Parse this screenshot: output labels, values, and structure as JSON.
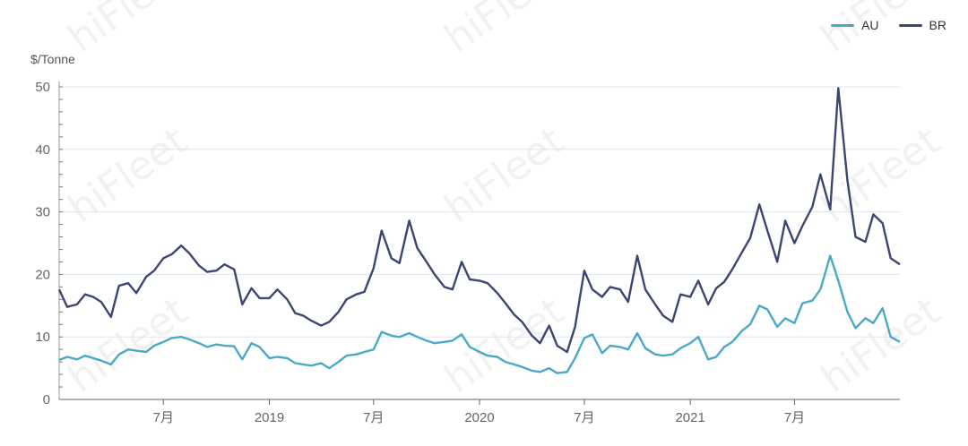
{
  "chart_data": {
    "type": "line",
    "y_unit": "$/Tonne",
    "ylim": [
      0,
      50
    ],
    "yticks": [
      0,
      10,
      20,
      30,
      40,
      50
    ],
    "x_range": [
      "2018-01-01",
      "2021-12-31"
    ],
    "xticks": [
      {
        "date": "2018-07-01",
        "label": "7月"
      },
      {
        "date": "2019-01-01",
        "label": "2019"
      },
      {
        "date": "2019-07-01",
        "label": "7月"
      },
      {
        "date": "2020-01-01",
        "label": "2020"
      },
      {
        "date": "2020-07-01",
        "label": "7月"
      },
      {
        "date": "2021-01-01",
        "label": "2021"
      },
      {
        "date": "2021-07-01",
        "label": "7月"
      }
    ],
    "grid": true,
    "legend_position": "top-right",
    "series": [
      {
        "name": "AU",
        "color": "#4aaac6",
        "points": [
          [
            "2018-01-01",
            6.3
          ],
          [
            "2018-01-15",
            6.8
          ],
          [
            "2018-02-01",
            6.4
          ],
          [
            "2018-02-15",
            7.0
          ],
          [
            "2018-03-01",
            6.6
          ],
          [
            "2018-03-15",
            6.2
          ],
          [
            "2018-04-01",
            5.6
          ],
          [
            "2018-04-15",
            7.2
          ],
          [
            "2018-05-01",
            8.0
          ],
          [
            "2018-05-15",
            7.8
          ],
          [
            "2018-06-01",
            7.6
          ],
          [
            "2018-06-15",
            8.6
          ],
          [
            "2018-07-01",
            9.2
          ],
          [
            "2018-07-15",
            9.8
          ],
          [
            "2018-08-01",
            10.0
          ],
          [
            "2018-08-15",
            9.6
          ],
          [
            "2018-09-01",
            9.0
          ],
          [
            "2018-09-15",
            8.4
          ],
          [
            "2018-10-01",
            8.8
          ],
          [
            "2018-10-15",
            8.6
          ],
          [
            "2018-11-01",
            8.5
          ],
          [
            "2018-11-15",
            6.4
          ],
          [
            "2018-12-01",
            9.0
          ],
          [
            "2018-12-15",
            8.4
          ],
          [
            "2019-01-01",
            6.6
          ],
          [
            "2019-01-15",
            6.8
          ],
          [
            "2019-02-01",
            6.6
          ],
          [
            "2019-02-15",
            5.8
          ],
          [
            "2019-03-01",
            5.6
          ],
          [
            "2019-03-15",
            5.4
          ],
          [
            "2019-04-01",
            5.8
          ],
          [
            "2019-04-15",
            5.0
          ],
          [
            "2019-05-01",
            6.0
          ],
          [
            "2019-05-15",
            7.0
          ],
          [
            "2019-06-01",
            7.2
          ],
          [
            "2019-06-15",
            7.6
          ],
          [
            "2019-07-01",
            8.0
          ],
          [
            "2019-07-15",
            10.8
          ],
          [
            "2019-08-01",
            10.2
          ],
          [
            "2019-08-15",
            10.0
          ],
          [
            "2019-09-01",
            10.6
          ],
          [
            "2019-09-15",
            10.0
          ],
          [
            "2019-10-01",
            9.4
          ],
          [
            "2019-10-15",
            9.0
          ],
          [
            "2019-11-01",
            9.2
          ],
          [
            "2019-11-15",
            9.4
          ],
          [
            "2019-12-01",
            10.4
          ],
          [
            "2019-12-15",
            8.4
          ],
          [
            "2020-01-01",
            7.6
          ],
          [
            "2020-01-15",
            7.0
          ],
          [
            "2020-02-01",
            6.8
          ],
          [
            "2020-02-15",
            6.0
          ],
          [
            "2020-03-01",
            5.6
          ],
          [
            "2020-03-15",
            5.2
          ],
          [
            "2020-04-01",
            4.6
          ],
          [
            "2020-04-15",
            4.4
          ],
          [
            "2020-05-01",
            5.0
          ],
          [
            "2020-05-15",
            4.2
          ],
          [
            "2020-06-01",
            4.4
          ],
          [
            "2020-06-15",
            6.6
          ],
          [
            "2020-07-01",
            9.8
          ],
          [
            "2020-07-15",
            10.4
          ],
          [
            "2020-08-01",
            7.4
          ],
          [
            "2020-08-15",
            8.6
          ],
          [
            "2020-09-01",
            8.4
          ],
          [
            "2020-09-15",
            8.0
          ],
          [
            "2020-10-01",
            10.6
          ],
          [
            "2020-10-15",
            8.2
          ],
          [
            "2020-11-01",
            7.2
          ],
          [
            "2020-11-15",
            7.0
          ],
          [
            "2020-12-01",
            7.2
          ],
          [
            "2020-12-15",
            8.2
          ],
          [
            "2021-01-01",
            9.0
          ],
          [
            "2021-01-15",
            10.0
          ],
          [
            "2021-02-01",
            6.4
          ],
          [
            "2021-02-15",
            6.8
          ],
          [
            "2021-03-01",
            8.4
          ],
          [
            "2021-03-15",
            9.2
          ],
          [
            "2021-04-01",
            11.0
          ],
          [
            "2021-04-15",
            12.0
          ],
          [
            "2021-05-01",
            15.0
          ],
          [
            "2021-05-15",
            14.4
          ],
          [
            "2021-06-01",
            11.6
          ],
          [
            "2021-06-15",
            13.0
          ],
          [
            "2021-07-01",
            12.2
          ],
          [
            "2021-07-15",
            15.4
          ],
          [
            "2021-08-01",
            15.8
          ],
          [
            "2021-08-15",
            17.6
          ],
          [
            "2021-09-01",
            23.0
          ],
          [
            "2021-09-15",
            19.0
          ],
          [
            "2021-10-01",
            14.0
          ],
          [
            "2021-10-15",
            11.4
          ],
          [
            "2021-11-01",
            13.0
          ],
          [
            "2021-11-15",
            12.2
          ],
          [
            "2021-12-01",
            14.6
          ],
          [
            "2021-12-15",
            10.0
          ],
          [
            "2021-12-31",
            9.2
          ]
        ]
      },
      {
        "name": "BR",
        "color": "#3d4670",
        "points": [
          [
            "2018-01-01",
            17.6
          ],
          [
            "2018-01-15",
            14.8
          ],
          [
            "2018-02-01",
            15.2
          ],
          [
            "2018-02-15",
            16.8
          ],
          [
            "2018-03-01",
            16.4
          ],
          [
            "2018-03-15",
            15.6
          ],
          [
            "2018-04-01",
            13.2
          ],
          [
            "2018-04-15",
            18.2
          ],
          [
            "2018-05-01",
            18.6
          ],
          [
            "2018-05-15",
            17.0
          ],
          [
            "2018-06-01",
            19.6
          ],
          [
            "2018-06-15",
            20.6
          ],
          [
            "2018-07-01",
            22.6
          ],
          [
            "2018-07-15",
            23.2
          ],
          [
            "2018-08-01",
            24.6
          ],
          [
            "2018-08-15",
            23.4
          ],
          [
            "2018-09-01",
            21.4
          ],
          [
            "2018-09-15",
            20.4
          ],
          [
            "2018-10-01",
            20.6
          ],
          [
            "2018-10-15",
            21.6
          ],
          [
            "2018-11-01",
            20.8
          ],
          [
            "2018-11-15",
            15.2
          ],
          [
            "2018-12-01",
            17.8
          ],
          [
            "2018-12-15",
            16.2
          ],
          [
            "2019-01-01",
            16.2
          ],
          [
            "2019-01-15",
            17.6
          ],
          [
            "2019-02-01",
            16.0
          ],
          [
            "2019-02-15",
            13.8
          ],
          [
            "2019-03-01",
            13.4
          ],
          [
            "2019-03-15",
            12.6
          ],
          [
            "2019-04-01",
            11.8
          ],
          [
            "2019-04-15",
            12.4
          ],
          [
            "2019-05-01",
            14.0
          ],
          [
            "2019-05-15",
            16.0
          ],
          [
            "2019-06-01",
            16.8
          ],
          [
            "2019-06-15",
            17.2
          ],
          [
            "2019-07-01",
            21.0
          ],
          [
            "2019-07-15",
            27.0
          ],
          [
            "2019-08-01",
            22.6
          ],
          [
            "2019-08-15",
            21.8
          ],
          [
            "2019-09-01",
            28.6
          ],
          [
            "2019-09-15",
            24.2
          ],
          [
            "2019-10-01",
            22.0
          ],
          [
            "2019-10-15",
            20.0
          ],
          [
            "2019-11-01",
            18.0
          ],
          [
            "2019-11-15",
            17.6
          ],
          [
            "2019-12-01",
            22.0
          ],
          [
            "2019-12-15",
            19.2
          ],
          [
            "2020-01-01",
            19.0
          ],
          [
            "2020-01-15",
            18.6
          ],
          [
            "2020-02-01",
            17.0
          ],
          [
            "2020-02-15",
            15.4
          ],
          [
            "2020-03-01",
            13.6
          ],
          [
            "2020-03-15",
            12.4
          ],
          [
            "2020-04-01",
            10.2
          ],
          [
            "2020-04-15",
            9.0
          ],
          [
            "2020-05-01",
            11.8
          ],
          [
            "2020-05-15",
            8.6
          ],
          [
            "2020-06-01",
            7.6
          ],
          [
            "2020-06-15",
            11.6
          ],
          [
            "2020-07-01",
            20.6
          ],
          [
            "2020-07-15",
            17.6
          ],
          [
            "2020-08-01",
            16.4
          ],
          [
            "2020-08-15",
            18.0
          ],
          [
            "2020-09-01",
            17.6
          ],
          [
            "2020-09-15",
            15.6
          ],
          [
            "2020-10-01",
            23.0
          ],
          [
            "2020-10-15",
            17.6
          ],
          [
            "2020-11-01",
            15.2
          ],
          [
            "2020-11-15",
            13.4
          ],
          [
            "2020-12-01",
            12.4
          ],
          [
            "2020-12-15",
            16.8
          ],
          [
            "2021-01-01",
            16.4
          ],
          [
            "2021-01-15",
            19.0
          ],
          [
            "2021-02-01",
            15.2
          ],
          [
            "2021-02-15",
            17.8
          ],
          [
            "2021-03-01",
            18.8
          ],
          [
            "2021-03-15",
            20.8
          ],
          [
            "2021-04-01",
            23.6
          ],
          [
            "2021-04-15",
            25.8
          ],
          [
            "2021-05-01",
            31.2
          ],
          [
            "2021-05-15",
            27.0
          ],
          [
            "2021-06-01",
            22.0
          ],
          [
            "2021-06-15",
            28.6
          ],
          [
            "2021-07-01",
            25.0
          ],
          [
            "2021-07-15",
            27.8
          ],
          [
            "2021-08-01",
            30.8
          ],
          [
            "2021-08-15",
            36.0
          ],
          [
            "2021-09-01",
            30.4
          ],
          [
            "2021-09-15",
            49.8
          ],
          [
            "2021-10-01",
            35.0
          ],
          [
            "2021-10-15",
            26.0
          ],
          [
            "2021-11-01",
            25.2
          ],
          [
            "2021-11-15",
            29.6
          ],
          [
            "2021-12-01",
            28.2
          ],
          [
            "2021-12-15",
            22.6
          ],
          [
            "2021-12-31",
            21.6
          ]
        ]
      }
    ]
  },
  "watermark": {
    "text": "hiFleet"
  }
}
